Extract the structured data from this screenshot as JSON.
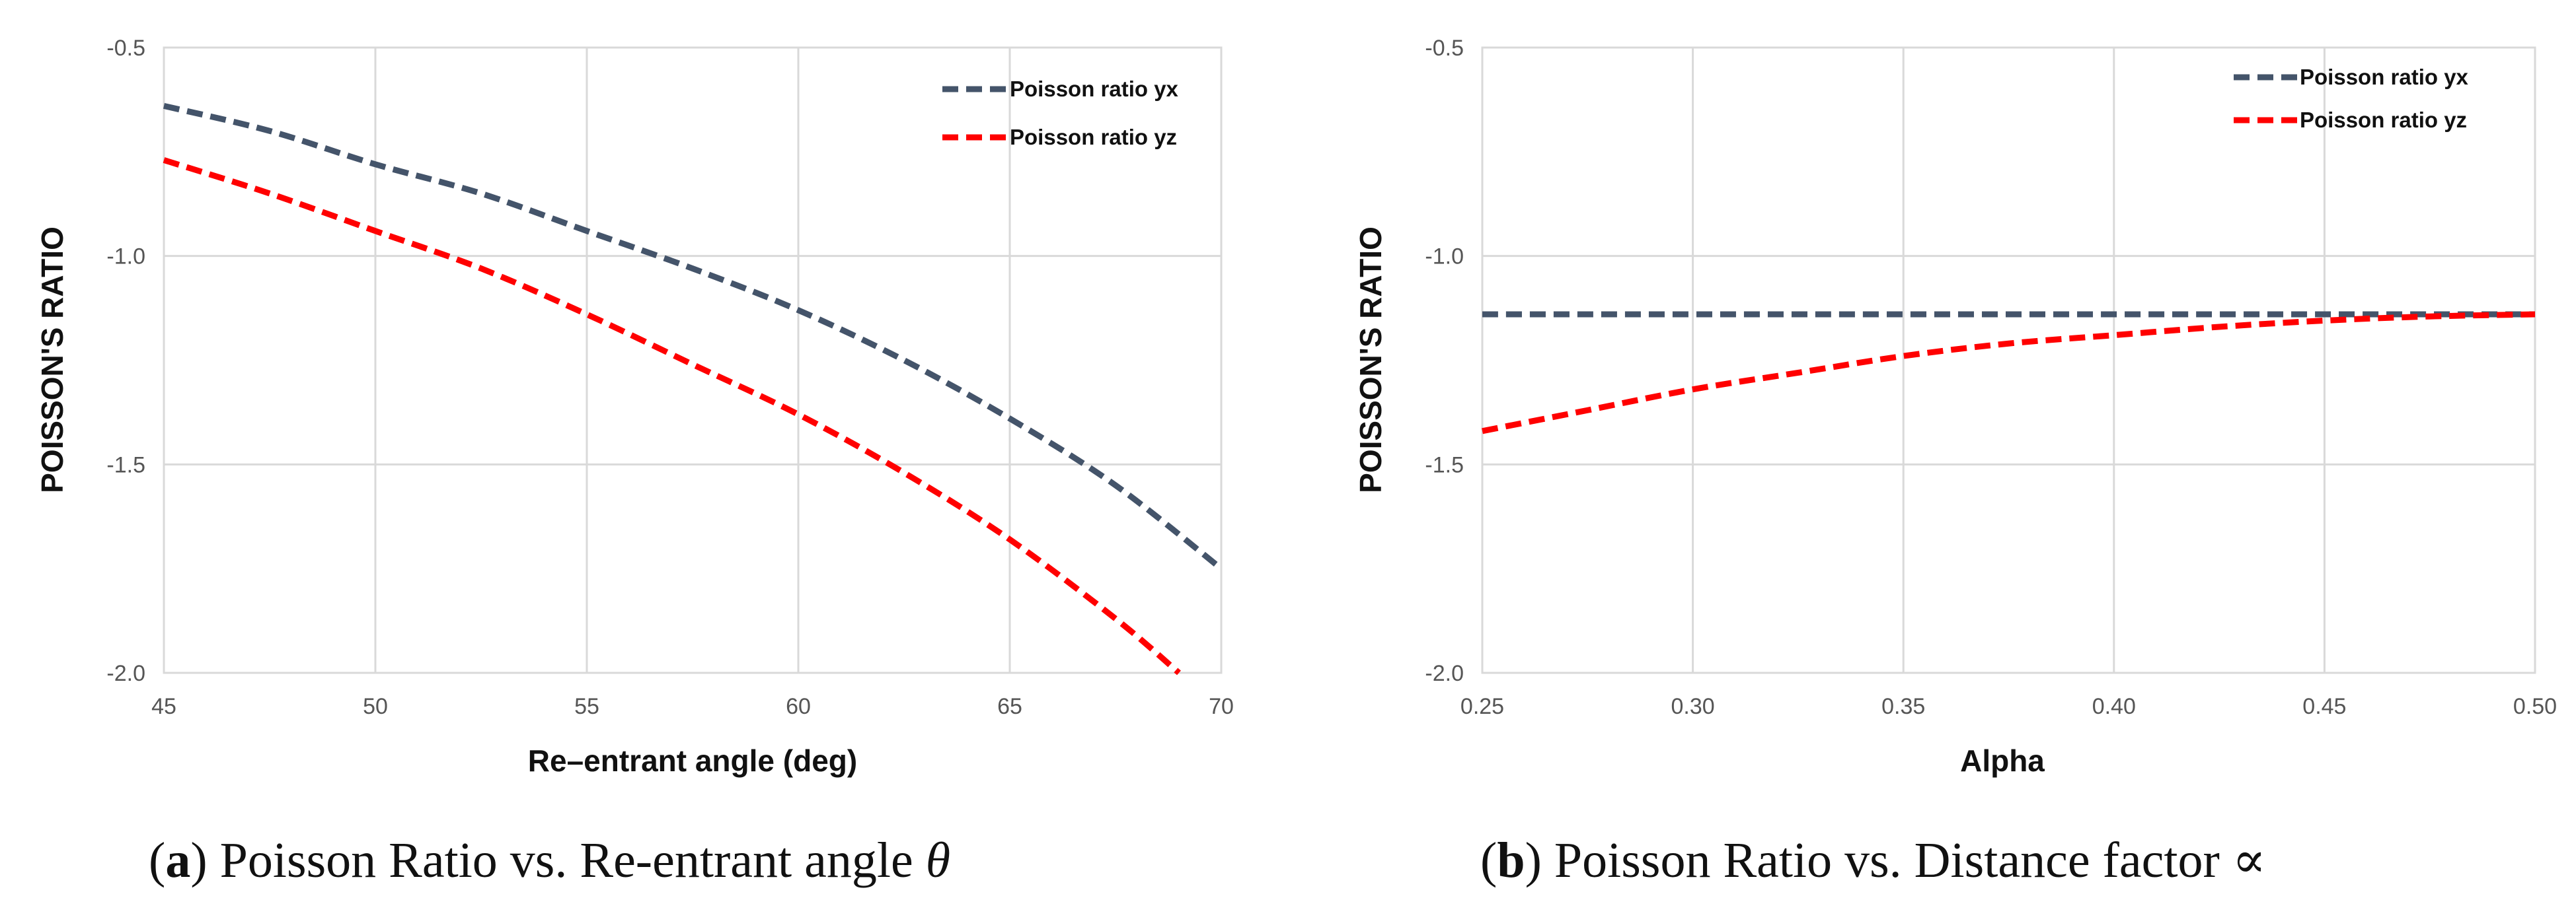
{
  "chart_data": [
    {
      "type": "line",
      "panel": "a",
      "xlabel": "Re–entrant angle (deg)",
      "ylabel": "POISSON'S RATIO",
      "xlim": [
        45,
        70
      ],
      "ylim": [
        -2.0,
        -0.5
      ],
      "x_ticks": [
        "45",
        "50",
        "55",
        "60",
        "65",
        "70"
      ],
      "y_ticks": [
        "-0.5",
        "-1.0",
        "-1.5",
        "-2.0"
      ],
      "grid": true,
      "legend_position": "top-right",
      "series": [
        {
          "name": "Poisson ratio yx",
          "color": "#44546a",
          "style": "dashed",
          "x": [
            45,
            47.5,
            50,
            52.5,
            55,
            57.5,
            60,
            62.5,
            65,
            67.5,
            70
          ],
          "y": [
            -0.64,
            -0.7,
            -0.78,
            -0.85,
            -0.94,
            -1.03,
            -1.13,
            -1.25,
            -1.39,
            -1.55,
            -1.75
          ]
        },
        {
          "name": "Poisson ratio yz",
          "color": "#ff0000",
          "style": "dashed",
          "x": [
            45,
            47.5,
            50,
            52.5,
            55,
            57.5,
            60,
            62.5,
            65,
            67.5,
            69
          ],
          "y": [
            -0.77,
            -0.85,
            -0.94,
            -1.03,
            -1.14,
            -1.26,
            -1.38,
            -1.52,
            -1.68,
            -1.87,
            -2.0
          ]
        }
      ],
      "caption": {
        "label": "a",
        "text": ") Poisson Ratio vs. Re-entrant angle ",
        "symbol": "θ"
      }
    },
    {
      "type": "line",
      "panel": "b",
      "xlabel": "Alpha",
      "ylabel": "POISSON'S RATIO",
      "xlim": [
        0.25,
        0.5
      ],
      "ylim": [
        -2.0,
        -0.5
      ],
      "x_ticks": [
        "0.25",
        "0.30",
        "0.35",
        "0.40",
        "0.45",
        "0.50"
      ],
      "y_ticks": [
        "-0.5",
        "-1.0",
        "-1.5",
        "-2.0"
      ],
      "grid": true,
      "legend_position": "top-right",
      "series": [
        {
          "name": "Poisson ratio yx",
          "color": "#44546a",
          "style": "dashed",
          "x": [
            0.25,
            0.5
          ],
          "y": [
            -1.14,
            -1.14
          ]
        },
        {
          "name": "Poisson ratio yz",
          "color": "#ff0000",
          "style": "dashed",
          "x": [
            0.25,
            0.275,
            0.3,
            0.325,
            0.35,
            0.375,
            0.4,
            0.425,
            0.45,
            0.475,
            0.5
          ],
          "y": [
            -1.42,
            -1.37,
            -1.32,
            -1.28,
            -1.24,
            -1.21,
            -1.19,
            -1.17,
            -1.155,
            -1.145,
            -1.14
          ]
        }
      ],
      "caption": {
        "label": "b",
        "text": ") Poisson Ratio vs. Distance factor ",
        "symbol": "∝"
      }
    }
  ]
}
